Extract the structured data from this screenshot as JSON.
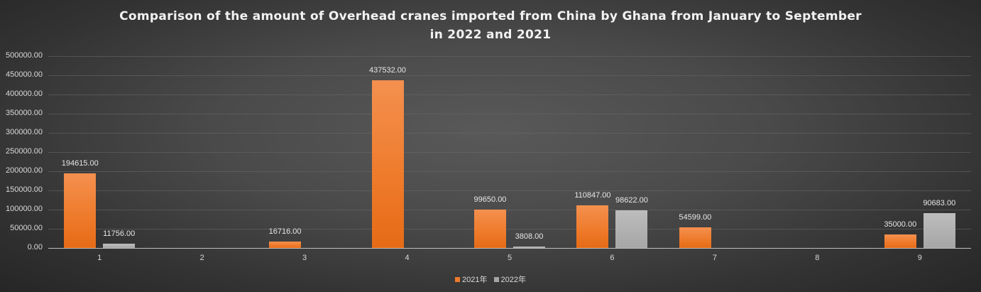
{
  "title": {
    "line1": "Comparison of the amount of Overhead cranes imported from China by Ghana from January to September",
    "line2": "in 2022 and 2021"
  },
  "colors": {
    "series_2021": "#ee7a2a",
    "series_2022": "#a6a6a6"
  },
  "legend": [
    {
      "label": "2021年",
      "color": "#ee7a2a"
    },
    {
      "label": "2022年",
      "color": "#a6a6a6"
    }
  ],
  "chart_data": {
    "type": "bar",
    "title": "Comparison of the amount of Overhead cranes imported from China by Ghana from January to September in 2022 and 2021",
    "xlabel": "",
    "ylabel": "",
    "categories": [
      "1",
      "2",
      "3",
      "4",
      "5",
      "6",
      "7",
      "8",
      "9"
    ],
    "series": [
      {
        "name": "2021年",
        "values": [
          194615.0,
          0,
          16716.0,
          437532.0,
          99650.0,
          110847.0,
          54599.0,
          0,
          35000.0
        ],
        "labels": [
          "194615.00",
          "",
          "16716.00",
          "437532.00",
          "99650.00",
          "110847.00",
          "54599.00",
          "",
          "35000.00"
        ]
      },
      {
        "name": "2022年",
        "values": [
          11756.0,
          0,
          0,
          0,
          3808.0,
          98622.0,
          0,
          0,
          90683.0
        ],
        "labels": [
          "11756.00",
          "",
          "",
          "",
          "3808.00",
          "98622.00",
          "",
          "",
          "90683.00"
        ]
      }
    ],
    "ylim": [
      0,
      500000
    ],
    "yticks": [
      "0.00",
      "50000.00",
      "100000.00",
      "150000.00",
      "200000.00",
      "250000.00",
      "300000.00",
      "350000.00",
      "400000.00",
      "450000.00",
      "500000.00"
    ],
    "grid": true,
    "legend_position": "bottom"
  }
}
